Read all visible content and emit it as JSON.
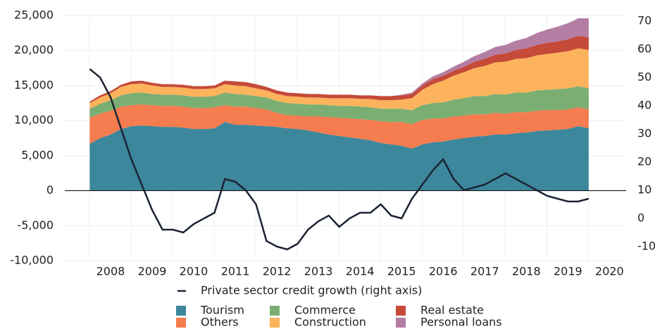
{
  "chart_data": {
    "type": "area",
    "stacked": true,
    "x": [
      2007.5,
      2007.75,
      2008.0,
      2008.25,
      2008.5,
      2008.75,
      2009.0,
      2009.25,
      2009.5,
      2009.75,
      2010.0,
      2010.25,
      2010.5,
      2010.75,
      2011.0,
      2011.25,
      2011.5,
      2011.75,
      2012.0,
      2012.25,
      2012.5,
      2012.75,
      2013.0,
      2013.25,
      2013.5,
      2013.75,
      2014.0,
      2014.25,
      2014.5,
      2014.75,
      2015.0,
      2015.25,
      2015.5,
      2015.75,
      2016.0,
      2016.25,
      2016.5,
      2016.75,
      2017.0,
      2017.25,
      2017.5,
      2017.75,
      2018.0,
      2018.25,
      2018.5,
      2018.75,
      2019.0,
      2019.25,
      2019.5
    ],
    "xlim": [
      2006.9,
      2020.4
    ],
    "xticks": [
      2008,
      2009,
      2010,
      2011,
      2012,
      2013,
      2014,
      2015,
      2016,
      2017,
      2018,
      2019,
      2020
    ],
    "ylim": [
      -10000,
      25000
    ],
    "yticks": [
      {
        "value": -10000,
        "label": "-10,000"
      },
      {
        "value": -5000,
        "label": "-5,000"
      },
      0,
      {
        "value": 5000,
        "label": "5,000"
      },
      {
        "value": 10000,
        "label": "10,000"
      },
      {
        "value": 15000,
        "label": "15,000"
      },
      {
        "value": 20000,
        "label": "20,000"
      },
      {
        "value": 25000,
        "label": "25,000"
      }
    ],
    "y2lim": [
      -15,
      72
    ],
    "y2ticks": [
      -10,
      0,
      10,
      20,
      30,
      40,
      50,
      60,
      70
    ],
    "grid": true,
    "series": [
      {
        "name": "Tourism",
        "color": "#3d879c",
        "values": [
          6700,
          7500,
          8000,
          8800,
          9200,
          9300,
          9200,
          9100,
          9100,
          9000,
          8800,
          8800,
          8900,
          9800,
          9400,
          9400,
          9300,
          9200,
          9100,
          8900,
          8800,
          8600,
          8300,
          8000,
          7800,
          7600,
          7400,
          7200,
          6800,
          6600,
          6400,
          6000,
          6600,
          6900,
          7000,
          7300,
          7500,
          7700,
          7800,
          8000,
          8000,
          8200,
          8300,
          8500,
          8600,
          8700,
          8800,
          9200,
          8900
        ]
      },
      {
        "name": "Others",
        "color": "#f47c4e",
        "values": [
          3700,
          3500,
          3400,
          3200,
          3000,
          3000,
          3000,
          3000,
          3000,
          3000,
          3000,
          3000,
          3000,
          2400,
          2600,
          2600,
          2500,
          2400,
          2000,
          1900,
          1900,
          2000,
          2300,
          2500,
          2600,
          2700,
          2800,
          2900,
          3100,
          3200,
          3400,
          3500,
          3500,
          3400,
          3300,
          3300,
          3200,
          3200,
          3100,
          3100,
          3000,
          3000,
          2900,
          2900,
          2900,
          2800,
          2800,
          2700,
          2700
        ]
      },
      {
        "name": "Commerce",
        "color": "#7bae72",
        "values": [
          1300,
          1400,
          1500,
          1600,
          1700,
          1700,
          1600,
          1600,
          1600,
          1600,
          1600,
          1600,
          1600,
          1800,
          1800,
          1700,
          1700,
          1700,
          1700,
          1700,
          1700,
          1700,
          1700,
          1700,
          1700,
          1800,
          1800,
          1800,
          1800,
          1900,
          1900,
          2000,
          2100,
          2200,
          2300,
          2400,
          2500,
          2600,
          2600,
          2700,
          2700,
          2800,
          2800,
          2900,
          2900,
          3000,
          3000,
          3000,
          3000
        ]
      },
      {
        "name": "Construction",
        "color": "#fdb35c",
        "values": [
          800,
          900,
          1000,
          1200,
          1300,
          1300,
          1200,
          1100,
          1100,
          1100,
          1100,
          1100,
          1100,
          1200,
          1200,
          1200,
          1100,
          1000,
          1000,
          1000,
          1000,
          1000,
          1000,
          1000,
          1100,
          1100,
          1100,
          1200,
          1200,
          1200,
          1300,
          1700,
          2200,
          2700,
          3100,
          3400,
          3700,
          4000,
          4300,
          4500,
          4700,
          4800,
          4900,
          5000,
          5100,
          5200,
          5300,
          5400,
          5500
        ]
      },
      {
        "name": "Real estate",
        "color": "#c54a38",
        "values": [
          200,
          300,
          300,
          300,
          400,
          400,
          400,
          400,
          400,
          400,
          400,
          400,
          400,
          500,
          600,
          600,
          600,
          500,
          500,
          500,
          500,
          500,
          500,
          500,
          500,
          500,
          500,
          500,
          600,
          600,
          600,
          600,
          600,
          700,
          700,
          700,
          800,
          900,
          1000,
          1100,
          1200,
          1300,
          1400,
          1500,
          1600,
          1600,
          1700,
          1800,
          1800
        ]
      },
      {
        "name": "Personal loans",
        "color": "#b47ea4",
        "values": [
          0,
          0,
          0,
          0,
          0,
          0,
          0,
          0,
          0,
          0,
          0,
          0,
          0,
          0,
          0,
          0,
          0,
          0,
          0,
          0,
          0,
          0,
          0,
          0,
          0,
          0,
          0,
          0,
          0,
          0,
          100,
          200,
          300,
          400,
          500,
          600,
          700,
          800,
          1000,
          1100,
          1200,
          1300,
          1500,
          1700,
          1900,
          2100,
          2300,
          2500,
          2700
        ]
      },
      {
        "name": "Private sector credit growth (right axis)",
        "type": "line",
        "axis": "y2",
        "color": "#1b2434",
        "values": [
          53,
          50,
          43,
          32,
          21,
          12,
          3,
          -4,
          -4,
          -5,
          -2,
          0,
          2,
          14,
          13,
          10,
          5,
          -8,
          -10,
          -11,
          -9,
          -4,
          -1,
          1,
          -3,
          0,
          2,
          2,
          5,
          1,
          0,
          7,
          12,
          17,
          21,
          14,
          10,
          11,
          12,
          14,
          16,
          14,
          12,
          10,
          8,
          7,
          6,
          6,
          7
        ]
      }
    ]
  }
}
